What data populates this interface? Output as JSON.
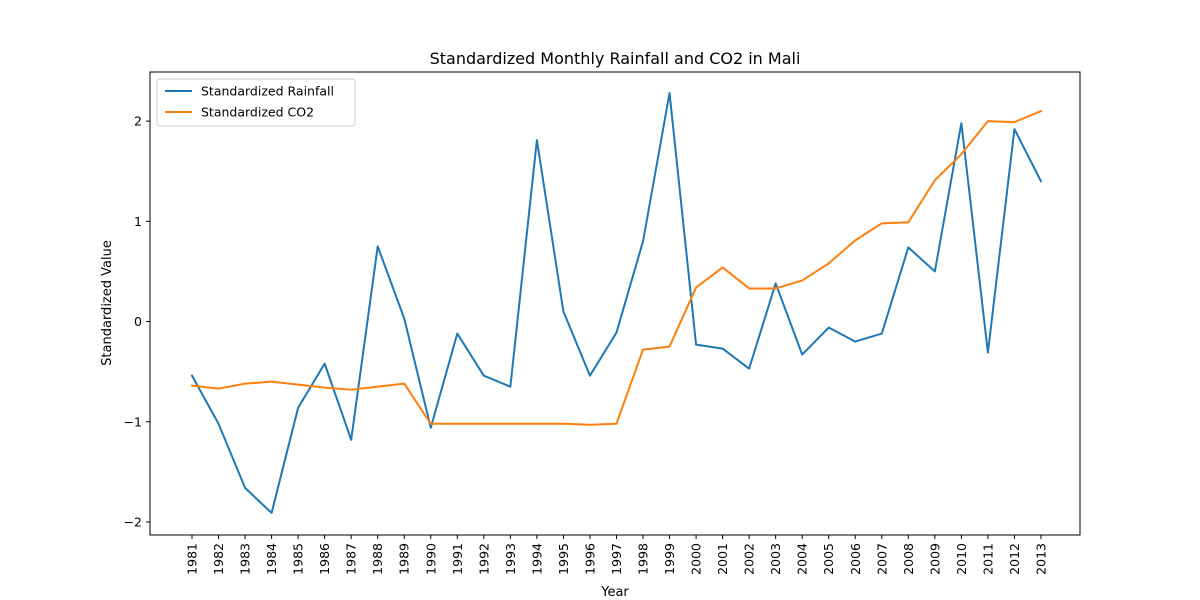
{
  "chart_data": {
    "type": "line",
    "title": "Standardized Monthly Rainfall and CO2 in Mali",
    "xlabel": "Year",
    "ylabel": "Standardized Value",
    "x": [
      "1981",
      "1982",
      "1983",
      "1984",
      "1985",
      "1986",
      "1987",
      "1988",
      "1989",
      "1990",
      "1991",
      "1992",
      "1993",
      "1994",
      "1995",
      "1996",
      "1997",
      "1998",
      "1999",
      "2000",
      "2001",
      "2002",
      "2003",
      "2004",
      "2005",
      "2006",
      "2007",
      "2008",
      "2009",
      "2010",
      "2011",
      "2012",
      "2013"
    ],
    "yticks": [
      "−2",
      "−1",
      "0",
      "1",
      "2"
    ],
    "ylim": [
      -2.13,
      2.49
    ],
    "grid": false,
    "legend_position": "top-left",
    "series": [
      {
        "name": "Standardized Rainfall",
        "color": "#1f77b4",
        "values": [
          -0.54,
          -1.02,
          -1.66,
          -1.91,
          -0.86,
          -0.42,
          -1.18,
          0.75,
          0.03,
          -1.06,
          -0.12,
          -0.54,
          -0.65,
          1.81,
          0.1,
          -0.54,
          -0.11,
          0.8,
          2.28,
          -0.23,
          -0.27,
          -0.47,
          0.38,
          -0.33,
          -0.06,
          -0.2,
          -0.12,
          0.74,
          0.5,
          1.98,
          -0.31,
          1.92,
          1.4
        ]
      },
      {
        "name": "Standardized CO2",
        "color": "#ff7f0e",
        "values": [
          -0.64,
          -0.67,
          -0.62,
          -0.6,
          -0.63,
          -0.66,
          -0.68,
          -0.65,
          -0.62,
          -1.02,
          -1.02,
          -1.02,
          -1.02,
          -1.02,
          -1.02,
          -1.03,
          -1.02,
          -0.28,
          -0.25,
          0.34,
          0.54,
          0.33,
          0.33,
          0.41,
          0.58,
          0.81,
          0.98,
          0.99,
          1.41,
          1.67,
          2.0,
          1.99,
          2.1
        ]
      }
    ]
  }
}
